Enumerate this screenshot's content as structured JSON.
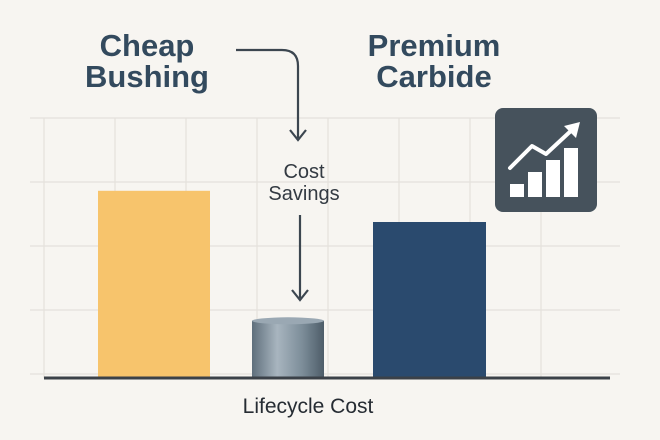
{
  "chart_data": {
    "type": "bar",
    "title": "",
    "xlabel": "Lifecycle Cost",
    "ylabel": "",
    "grid": true,
    "ylim": [
      0,
      100
    ],
    "bars": [
      {
        "name": "Cheap Bushing",
        "label_lines": [
          "Cheap",
          "Bushing"
        ],
        "value": 72,
        "color": "#f7c46c"
      },
      {
        "name": "Cost Savings",
        "label_lines": [
          "Cost",
          "Savings"
        ],
        "value": 22,
        "color": "#7b8c99"
      },
      {
        "name": "Premium Carbide",
        "label_lines": [
          "Premium",
          "Carbide"
        ],
        "value": 60,
        "color": "#2a4a6e"
      }
    ]
  },
  "icon": {
    "name": "growth-chart-icon",
    "background": "#46525c",
    "foreground": "#ffffff"
  },
  "colors": {
    "background": "#f7f5f1",
    "grid": "#e4e1dc",
    "axis": "#3b4148",
    "arrow": "#3c4650"
  }
}
